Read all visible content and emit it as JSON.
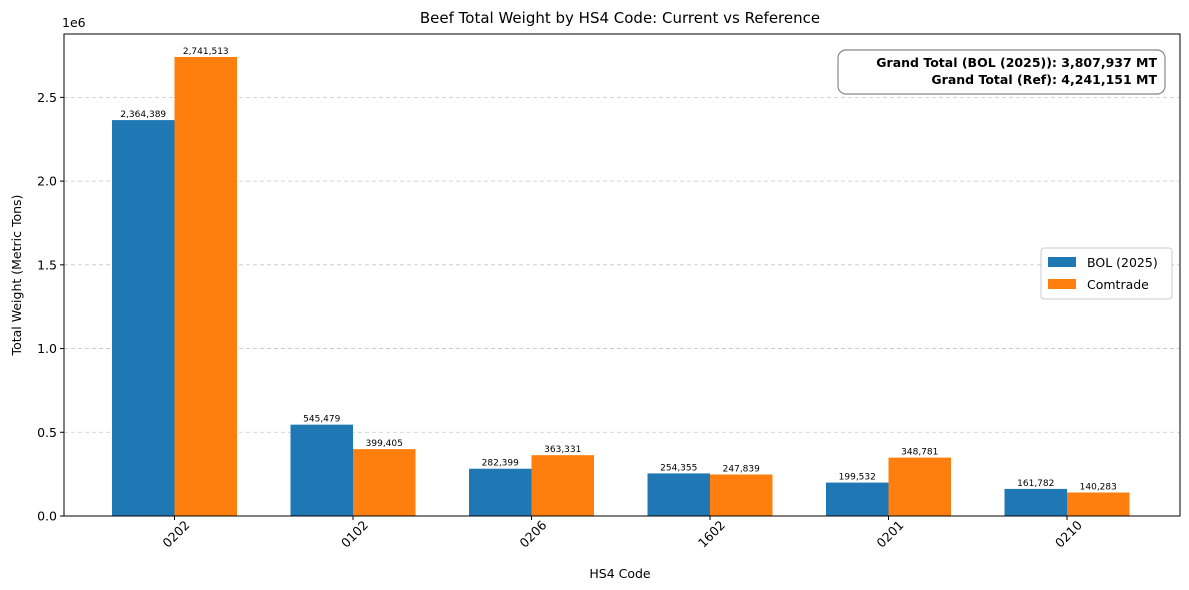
{
  "chart_data": {
    "type": "bar",
    "title": "Beef Total Weight by HS4 Code: Current vs Reference",
    "xlabel": "HS4 Code",
    "ylabel": "Total Weight (Metric Tons)",
    "y_offset_label": "1e6",
    "categories": [
      "0202",
      "0102",
      "0206",
      "1602",
      "0201",
      "0210"
    ],
    "series": [
      {
        "name": "BOL (2025)",
        "color": "#1f77b4",
        "values": [
          2364389,
          545479,
          282399,
          254355,
          199532,
          161782
        ],
        "labels": [
          "2,364,389",
          "545,479",
          "282,399",
          "254,355",
          "199,532",
          "161,782"
        ]
      },
      {
        "name": "Comtrade",
        "color": "#ff7f0e",
        "values": [
          2741513,
          399405,
          363331,
          247839,
          348781,
          140283
        ],
        "labels": [
          "2,741,513",
          "399,405",
          "363,331",
          "247,839",
          "348,781",
          "140,283"
        ]
      }
    ],
    "ylim": [
      0,
      2878588
    ],
    "yticks": [
      0,
      500000,
      1000000,
      1500000,
      2000000,
      2500000
    ],
    "ytick_labels": [
      "0.0",
      "0.5",
      "1.0",
      "1.5",
      "2.0",
      "2.5"
    ],
    "grid": "y-dashed",
    "legend_position": "center-right",
    "annotation": {
      "line1": "Grand Total (BOL (2025)): 3,807,937 MT",
      "line2": "Grand Total (Ref): 4,241,151 MT"
    }
  }
}
